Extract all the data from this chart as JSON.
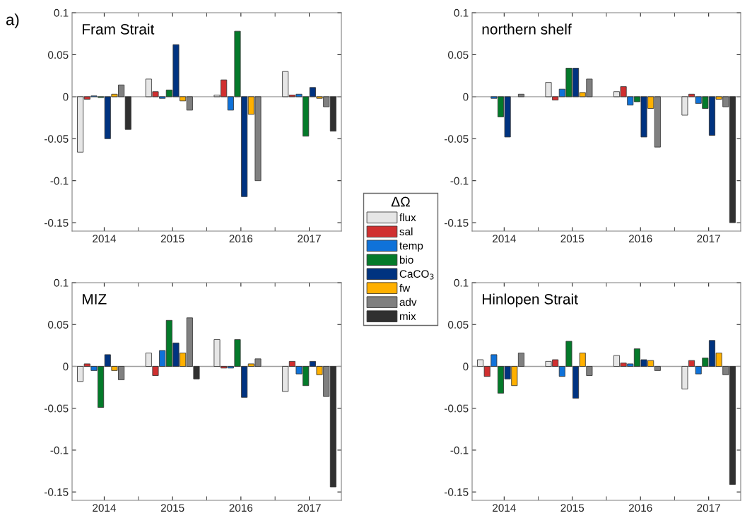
{
  "chart_data": [
    {
      "type": "bar",
      "title": "Fram Strait",
      "annotations": [
        "a)"
      ],
      "legend": "right",
      "legend_title": "ΔΩ",
      "categories": [
        "2014",
        "2015",
        "2016",
        "2017"
      ],
      "ylim": [
        -0.16,
        0.1
      ],
      "yticks": [
        -0.15,
        -0.1,
        -0.05,
        0,
        0.05,
        0.1
      ],
      "ref_lines": [
        {
          "axis": "y",
          "value": 0,
          "color": "#a0a0a0"
        }
      ],
      "series": [
        {
          "name": "flux",
          "color": "#e6e6e6",
          "values": [
            -0.066,
            0.021,
            0.002,
            0.03
          ]
        },
        {
          "name": "sal",
          "color": "#d03030",
          "values": [
            -0.003,
            0.006,
            0.02,
            0.002
          ]
        },
        {
          "name": "temp",
          "color": "#0f72d9",
          "values": [
            0.001,
            -0.002,
            -0.016,
            0.003
          ]
        },
        {
          "name": "bio",
          "color": "#047a2a",
          "values": [
            -0.001,
            0.008,
            0.078,
            -0.047
          ]
        },
        {
          "name": "CaCO$_{3}$",
          "color": "#003380",
          "values": [
            -0.05,
            0.062,
            -0.119,
            0.011
          ]
        },
        {
          "name": "fw",
          "color": "#ffb000",
          "values": [
            0.003,
            -0.005,
            -0.021,
            -0.002
          ]
        },
        {
          "name": "adv",
          "color": "#808080",
          "values": [
            0.014,
            -0.016,
            -0.1,
            -0.012
          ]
        },
        {
          "name": "mix",
          "color": "#303030",
          "values": [
            -0.039,
            null,
            null,
            -0.041
          ]
        }
      ]
    },
    {
      "type": "bar",
      "title": "northern shelf",
      "categories": [
        "2014",
        "2015",
        "2016",
        "2017"
      ],
      "ylim": [
        -0.16,
        0.1
      ],
      "yticks": [
        -0.15,
        -0.1,
        -0.05,
        0,
        0.05,
        0.1
      ],
      "ref_lines": [
        {
          "axis": "y",
          "value": 0,
          "color": "#a0a0a0"
        }
      ],
      "series": [
        {
          "color": "#e6e6e6",
          "values": [
            null,
            0.017,
            0.006,
            -0.022
          ]
        },
        {
          "color": "#d03030",
          "values": [
            null,
            -0.004,
            0.012,
            0.003
          ]
        },
        {
          "color": "#0f72d9",
          "values": [
            -0.002,
            0.009,
            -0.01,
            -0.008
          ]
        },
        {
          "color": "#047a2a",
          "values": [
            -0.024,
            0.034,
            -0.006,
            -0.014
          ]
        },
        {
          "color": "#003380",
          "values": [
            -0.048,
            0.034,
            -0.048,
            -0.046
          ]
        },
        {
          "color": "#ffb000",
          "values": [
            null,
            0.005,
            -0.014,
            -0.003
          ]
        },
        {
          "color": "#808080",
          "values": [
            0.003,
            0.021,
            -0.06,
            -0.012
          ]
        },
        {
          "color": "#303030",
          "values": [
            null,
            null,
            null,
            -0.15
          ]
        }
      ]
    },
    {
      "type": "bar",
      "title": "MIZ",
      "categories": [
        "2014",
        "2015",
        "2016",
        "2017"
      ],
      "ylim": [
        -0.16,
        0.1
      ],
      "yticks": [
        -0.15,
        -0.1,
        -0.05,
        0,
        0.05,
        0.1
      ],
      "ref_lines": [
        {
          "axis": "y",
          "value": 0,
          "color": "#a0a0a0"
        }
      ],
      "series": [
        {
          "color": "#e6e6e6",
          "values": [
            -0.018,
            0.016,
            0.032,
            -0.03
          ]
        },
        {
          "color": "#d03030",
          "values": [
            0.003,
            -0.011,
            -0.002,
            0.006
          ]
        },
        {
          "color": "#0f72d9",
          "values": [
            -0.005,
            0.019,
            -0.002,
            -0.009
          ]
        },
        {
          "color": "#047a2a",
          "values": [
            -0.049,
            0.055,
            0.032,
            -0.023
          ]
        },
        {
          "color": "#003380",
          "values": [
            0.014,
            0.028,
            -0.037,
            0.006
          ]
        },
        {
          "color": "#ffb000",
          "values": [
            -0.005,
            0.016,
            0.003,
            -0.01
          ]
        },
        {
          "color": "#808080",
          "values": [
            -0.016,
            0.058,
            0.009,
            -0.036
          ]
        },
        {
          "color": "#303030",
          "values": [
            null,
            -0.015,
            null,
            -0.144
          ]
        }
      ]
    },
    {
      "type": "bar",
      "title": "Hinlopen Strait",
      "categories": [
        "2014",
        "2015",
        "2016",
        "2017"
      ],
      "ylim": [
        -0.16,
        0.1
      ],
      "yticks": [
        -0.15,
        -0.1,
        -0.05,
        0,
        0.05,
        0.1
      ],
      "ref_lines": [
        {
          "axis": "y",
          "value": 0,
          "color": "#a0a0a0"
        }
      ],
      "series": [
        {
          "color": "#e6e6e6",
          "values": [
            0.008,
            0.006,
            0.013,
            -0.027
          ]
        },
        {
          "color": "#d03030",
          "values": [
            -0.012,
            0.008,
            0.004,
            0.007
          ]
        },
        {
          "color": "#0f72d9",
          "values": [
            0.014,
            -0.012,
            0.003,
            -0.009
          ]
        },
        {
          "color": "#047a2a",
          "values": [
            -0.032,
            0.03,
            0.021,
            0.01
          ]
        },
        {
          "color": "#003380",
          "values": [
            -0.015,
            -0.038,
            0.008,
            0.031
          ]
        },
        {
          "color": "#ffb000",
          "values": [
            -0.023,
            0.016,
            0.007,
            0.016
          ]
        },
        {
          "color": "#808080",
          "values": [
            0.016,
            -0.011,
            -0.005,
            -0.01
          ]
        },
        {
          "color": "#303030",
          "values": [
            null,
            null,
            null,
            -0.141
          ]
        }
      ]
    }
  ]
}
